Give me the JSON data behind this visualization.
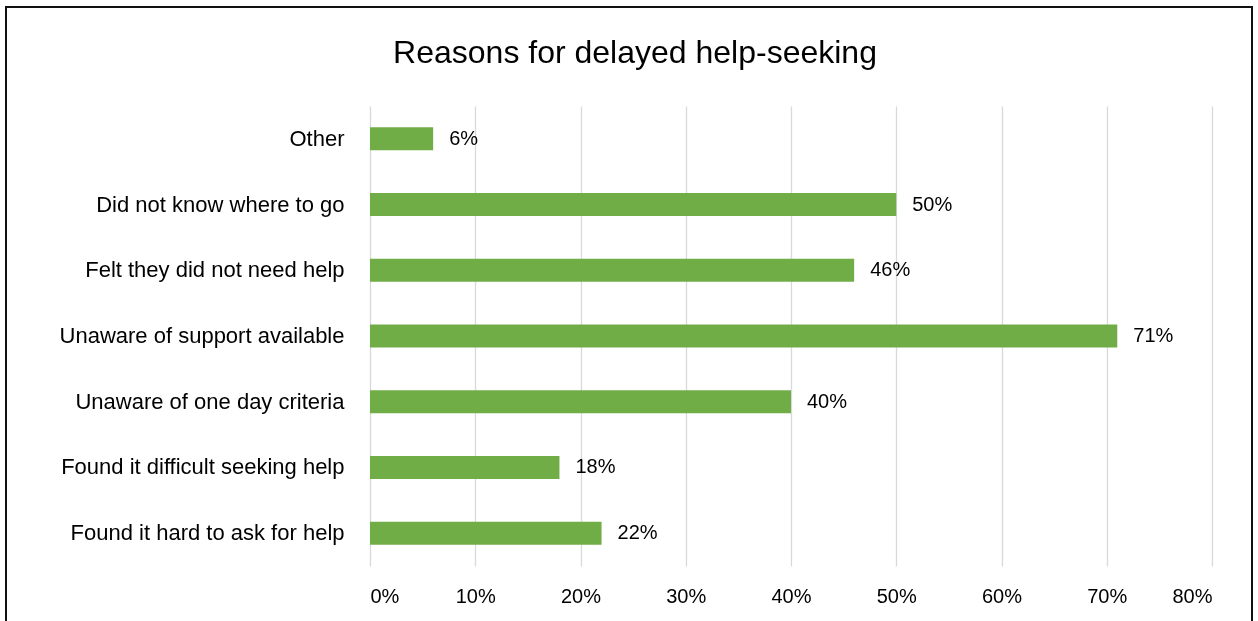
{
  "chart_data": {
    "type": "bar",
    "orientation": "horizontal",
    "title": "Reasons for delayed help-seeking",
    "categories": [
      "Other",
      "Did not know where to go",
      "Felt they did not need help",
      "Unaware of support available",
      "Unaware of one day criteria",
      "Found it difficult seeking help",
      "Found it hard to ask for help"
    ],
    "values": [
      6,
      50,
      46,
      71,
      40,
      18,
      22
    ],
    "value_labels": [
      "6%",
      "50%",
      "46%",
      "71%",
      "40%",
      "18%",
      "22%"
    ],
    "color": "#70ad47",
    "xlim": [
      0,
      80
    ],
    "xticks": [
      {
        "value": 0,
        "label": "0%"
      },
      {
        "value": 10,
        "label": "10%"
      },
      {
        "value": 20,
        "label": "20%"
      },
      {
        "value": 30,
        "label": "30%"
      },
      {
        "value": 40,
        "label": "40%"
      },
      {
        "value": 50,
        "label": "50%"
      },
      {
        "value": 60,
        "label": "60%"
      },
      {
        "value": 70,
        "label": "70%"
      },
      {
        "value": 80,
        "label": "80%"
      }
    ],
    "grid": "x"
  }
}
